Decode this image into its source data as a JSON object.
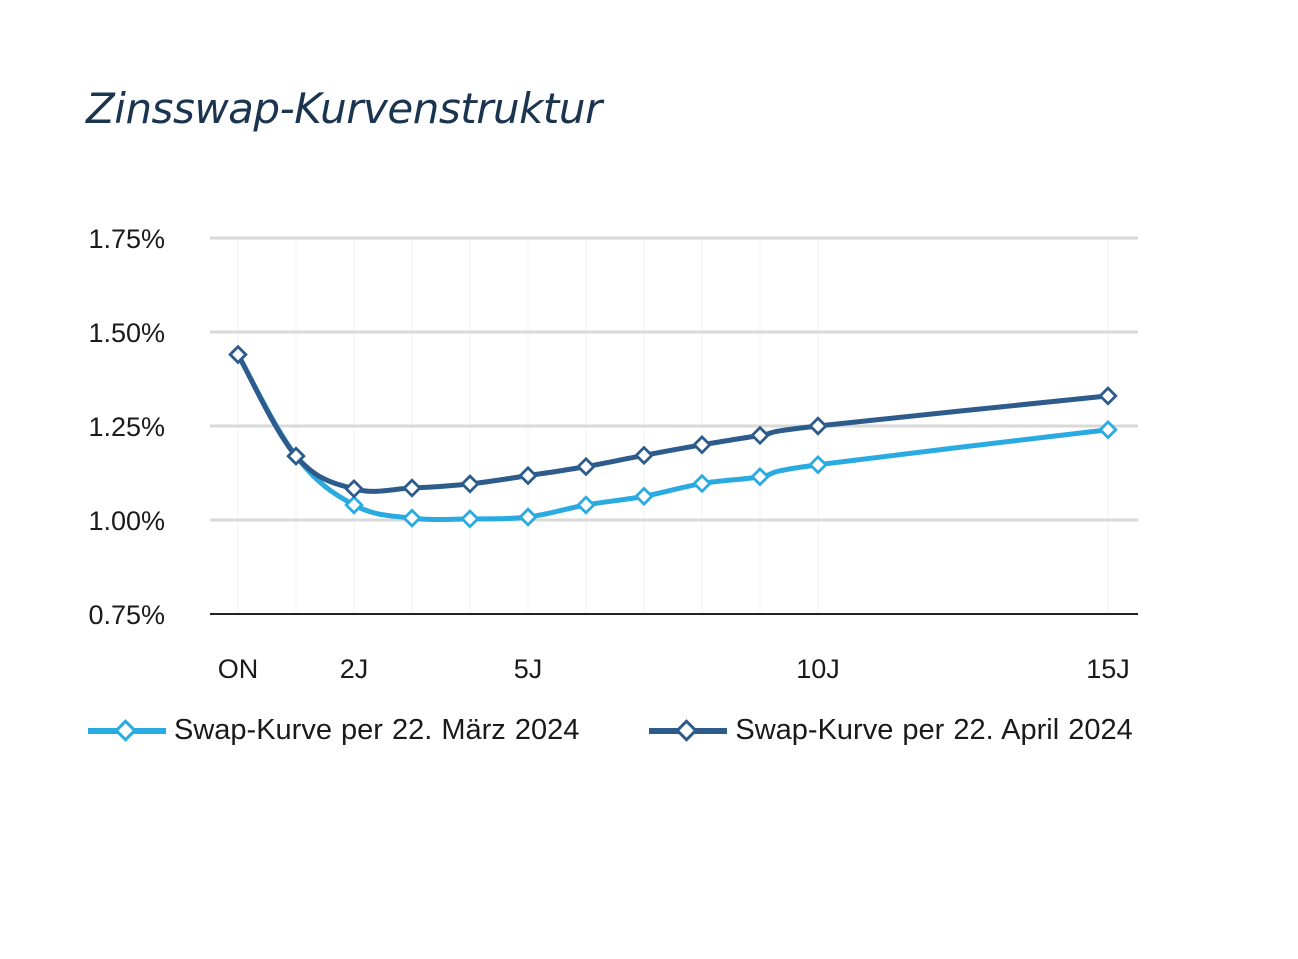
{
  "chart_data": {
    "type": "line",
    "title": "Zinsswap-Kurvenstruktur",
    "x": [
      "ON",
      "1J",
      "2J",
      "3J",
      "4J",
      "5J",
      "6J",
      "7J",
      "8J",
      "9J",
      "10J",
      "15J"
    ],
    "x_labels_shown": [
      "ON",
      "2J",
      "5J",
      "10J",
      "15J"
    ],
    "y_ticks": [
      "0.75%",
      "1.00%",
      "1.25%",
      "1.50%",
      "1.75%"
    ],
    "ylim": [
      0.75,
      1.75
    ],
    "y_unit": "%",
    "grid": "horizontal",
    "legend_position": "bottom",
    "series": [
      {
        "name": "Swap-Kurve per 22. März 2024",
        "color": "#29abe2",
        "values": [
          1.44,
          1.17,
          1.04,
          1.005,
          1.003,
          1.008,
          1.04,
          1.063,
          1.097,
          1.115,
          1.147,
          1.24
        ]
      },
      {
        "name": "Swap-Kurve per 22. April 2024",
        "color": "#2d5b8c",
        "values": [
          1.44,
          1.17,
          1.083,
          1.085,
          1.096,
          1.118,
          1.142,
          1.172,
          1.2,
          1.225,
          1.25,
          1.33
        ]
      }
    ]
  }
}
